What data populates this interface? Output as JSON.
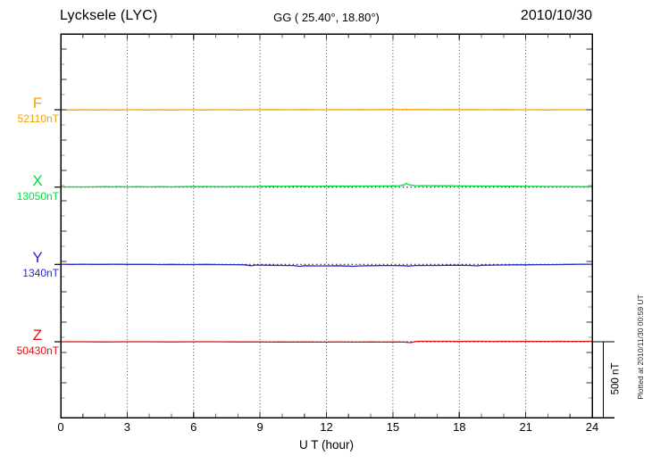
{
  "header": {
    "station_title": "Lycksele (LYC)",
    "coordinates": "GG ( 25.40°,  18.80°)",
    "date": "2010/10/30"
  },
  "x_axis": {
    "label": "U T (hour)",
    "tick_labels": [
      "0",
      "3",
      "6",
      "9",
      "12",
      "15",
      "18",
      "21",
      "24"
    ]
  },
  "side": {
    "scale_bar_label": "500 nT",
    "plotted_note": "Plotted at 2010/11/30 00:59 UT"
  },
  "chart_data": {
    "type": "line",
    "title": "Lycksele (LYC) magnetogram 2010/10/30",
    "xlabel": "U T (hour)",
    "x_range": [
      0,
      24
    ],
    "x_major_ticks": [
      0,
      3,
      6,
      9,
      12,
      15,
      18,
      21,
      24
    ],
    "x_minor_tick_every_hours": 1,
    "gridline_hours": [
      3,
      6,
      9,
      12,
      15,
      18,
      21
    ],
    "y_minor_tick_nT": 100,
    "scale_bar_nT": 500,
    "layout": {
      "grid": "dotted-vertical",
      "baseline_style": "dotted-black",
      "legend": "left-labels"
    },
    "series": [
      {
        "component": "F",
        "label": "F",
        "baseline_label": "52110nT",
        "baseline_nT": 52110,
        "color": "#F0A300",
        "points_hour_offsetnT": [
          [
            0,
            0
          ],
          [
            0.5,
            -1
          ],
          [
            1,
            0
          ],
          [
            1.5,
            -1
          ],
          [
            2,
            0
          ],
          [
            2.5,
            -1
          ],
          [
            3,
            0
          ],
          [
            3.5,
            0
          ],
          [
            4,
            -1
          ],
          [
            4.5,
            0
          ],
          [
            5,
            -1
          ],
          [
            5.5,
            0
          ],
          [
            6,
            0
          ],
          [
            6.5,
            -1
          ],
          [
            7,
            0
          ],
          [
            7.5,
            0
          ],
          [
            8,
            -1
          ],
          [
            8.5,
            0
          ],
          [
            9,
            0
          ],
          [
            9.5,
            1
          ],
          [
            10,
            0
          ],
          [
            10.5,
            0
          ],
          [
            11,
            1
          ],
          [
            11.5,
            0
          ],
          [
            12,
            0
          ],
          [
            12.5,
            1
          ],
          [
            13,
            0
          ],
          [
            13.5,
            1
          ],
          [
            14,
            0
          ],
          [
            14.5,
            1
          ],
          [
            15,
            1
          ],
          [
            15.4,
            1
          ],
          [
            15.6,
            3
          ],
          [
            15.8,
            1
          ],
          [
            16,
            1
          ],
          [
            16.5,
            1
          ],
          [
            17,
            0
          ],
          [
            17.5,
            1
          ],
          [
            18,
            0
          ],
          [
            18.5,
            1
          ],
          [
            19,
            0
          ],
          [
            19.5,
            0
          ],
          [
            20,
            1
          ],
          [
            20.5,
            0
          ],
          [
            21,
            0
          ],
          [
            21.5,
            0
          ],
          [
            22,
            -1
          ],
          [
            22.5,
            0
          ],
          [
            23,
            0
          ],
          [
            23.5,
            0
          ],
          [
            24,
            0
          ]
        ]
      },
      {
        "component": "X",
        "label": "X",
        "baseline_label": "13050nT",
        "baseline_nT": 13050,
        "color": "#00DC3C",
        "points_hour_offsetnT": [
          [
            0,
            1
          ],
          [
            0.5,
            2
          ],
          [
            1,
            1
          ],
          [
            1.5,
            2
          ],
          [
            2,
            3
          ],
          [
            2.4,
            2
          ],
          [
            2.5,
            4
          ],
          [
            3,
            2
          ],
          [
            3.5,
            3
          ],
          [
            4,
            2
          ],
          [
            4.5,
            3
          ],
          [
            5,
            2
          ],
          [
            5.5,
            3
          ],
          [
            6,
            4
          ],
          [
            6.3,
            3
          ],
          [
            6.5,
            4
          ],
          [
            7,
            3
          ],
          [
            7.5,
            3
          ],
          [
            8,
            4
          ],
          [
            8.5,
            3
          ],
          [
            9,
            5
          ],
          [
            9.5,
            6
          ],
          [
            10,
            5
          ],
          [
            10.5,
            6
          ],
          [
            11,
            6
          ],
          [
            11.5,
            5
          ],
          [
            12,
            6
          ],
          [
            12.5,
            7
          ],
          [
            13,
            6
          ],
          [
            13.5,
            7
          ],
          [
            14,
            7
          ],
          [
            14.5,
            8
          ],
          [
            15,
            8
          ],
          [
            15.3,
            9
          ],
          [
            15.5,
            14
          ],
          [
            15.6,
            26
          ],
          [
            15.7,
            16
          ],
          [
            15.9,
            12
          ],
          [
            16,
            10
          ],
          [
            16.3,
            9
          ],
          [
            16.5,
            10
          ],
          [
            17,
            9
          ],
          [
            17.5,
            9
          ],
          [
            18,
            8
          ],
          [
            18.5,
            8
          ],
          [
            19,
            7
          ],
          [
            19.5,
            7
          ],
          [
            20,
            6
          ],
          [
            20.5,
            6
          ],
          [
            21,
            5
          ],
          [
            21.5,
            5
          ],
          [
            22,
            4
          ],
          [
            22.5,
            4
          ],
          [
            23,
            4
          ],
          [
            23.5,
            3
          ],
          [
            24,
            3
          ]
        ]
      },
      {
        "component": "Y",
        "label": "Y",
        "baseline_label": "1340nT",
        "baseline_nT": 1340,
        "color": "#2828CC",
        "points_hour_offsetnT": [
          [
            0,
            1
          ],
          [
            0.5,
            0
          ],
          [
            1,
            1
          ],
          [
            1.5,
            0
          ],
          [
            2,
            0
          ],
          [
            2.5,
            1
          ],
          [
            3,
            0
          ],
          [
            3.5,
            0
          ],
          [
            4,
            0
          ],
          [
            4.5,
            -1
          ],
          [
            5,
            0
          ],
          [
            5.5,
            -1
          ],
          [
            6,
            -1
          ],
          [
            6.5,
            0
          ],
          [
            7,
            -1
          ],
          [
            7.5,
            -2
          ],
          [
            8,
            -2
          ],
          [
            8.3,
            -3
          ],
          [
            8.6,
            -9
          ],
          [
            8.8,
            -4
          ],
          [
            9,
            -5
          ],
          [
            9.5,
            -6
          ],
          [
            10,
            -7
          ],
          [
            10.5,
            -8
          ],
          [
            10.8,
            -13
          ],
          [
            11,
            -9
          ],
          [
            11.5,
            -10
          ],
          [
            12,
            -10
          ],
          [
            12.5,
            -9
          ],
          [
            13,
            -11
          ],
          [
            13.2,
            -13
          ],
          [
            13.5,
            -10
          ],
          [
            14,
            -9
          ],
          [
            14.5,
            -8
          ],
          [
            15,
            -8
          ],
          [
            15.5,
            -9
          ],
          [
            15.7,
            -11
          ],
          [
            16,
            -8
          ],
          [
            16.5,
            -7
          ],
          [
            17,
            -7
          ],
          [
            17.5,
            -6
          ],
          [
            18,
            -6
          ],
          [
            18.5,
            -7
          ],
          [
            18.8,
            -10
          ],
          [
            19,
            -6
          ],
          [
            19.5,
            -5
          ],
          [
            20,
            -4
          ],
          [
            20.5,
            -3
          ],
          [
            21,
            -3
          ],
          [
            21.5,
            -2
          ],
          [
            22,
            -2
          ],
          [
            22.5,
            -1
          ],
          [
            23,
            0
          ],
          [
            23.5,
            1
          ],
          [
            24,
            1
          ]
        ]
      },
      {
        "component": "Z",
        "label": "Z",
        "baseline_label": "50430nT",
        "baseline_nT": 50430,
        "color": "#DD1111",
        "points_hour_offsetnT": [
          [
            0,
            0
          ],
          [
            1,
            0
          ],
          [
            2,
            -1
          ],
          [
            3,
            0
          ],
          [
            4,
            0
          ],
          [
            5,
            -1
          ],
          [
            6,
            0
          ],
          [
            7,
            0
          ],
          [
            8,
            -1
          ],
          [
            9,
            -1
          ],
          [
            9.5,
            -2
          ],
          [
            10,
            -1
          ],
          [
            10.5,
            -2
          ],
          [
            11,
            -1
          ],
          [
            11.5,
            -2
          ],
          [
            12,
            -2
          ],
          [
            12.5,
            -1
          ],
          [
            13,
            -2
          ],
          [
            13.5,
            -2
          ],
          [
            14,
            -1
          ],
          [
            14.5,
            -2
          ],
          [
            15,
            -1
          ],
          [
            15.5,
            -2
          ],
          [
            15.8,
            -6
          ],
          [
            16,
            1
          ],
          [
            16.2,
            3
          ],
          [
            16.5,
            3
          ],
          [
            17,
            3
          ],
          [
            17.5,
            3
          ],
          [
            18,
            2
          ],
          [
            18.5,
            3
          ],
          [
            19,
            3
          ],
          [
            19.5,
            2
          ],
          [
            20,
            3
          ],
          [
            20.5,
            2
          ],
          [
            21,
            3
          ],
          [
            21.5,
            2
          ],
          [
            22,
            2
          ],
          [
            22.5,
            3
          ],
          [
            23,
            2
          ],
          [
            23.5,
            2
          ],
          [
            24,
            2
          ]
        ]
      }
    ]
  }
}
